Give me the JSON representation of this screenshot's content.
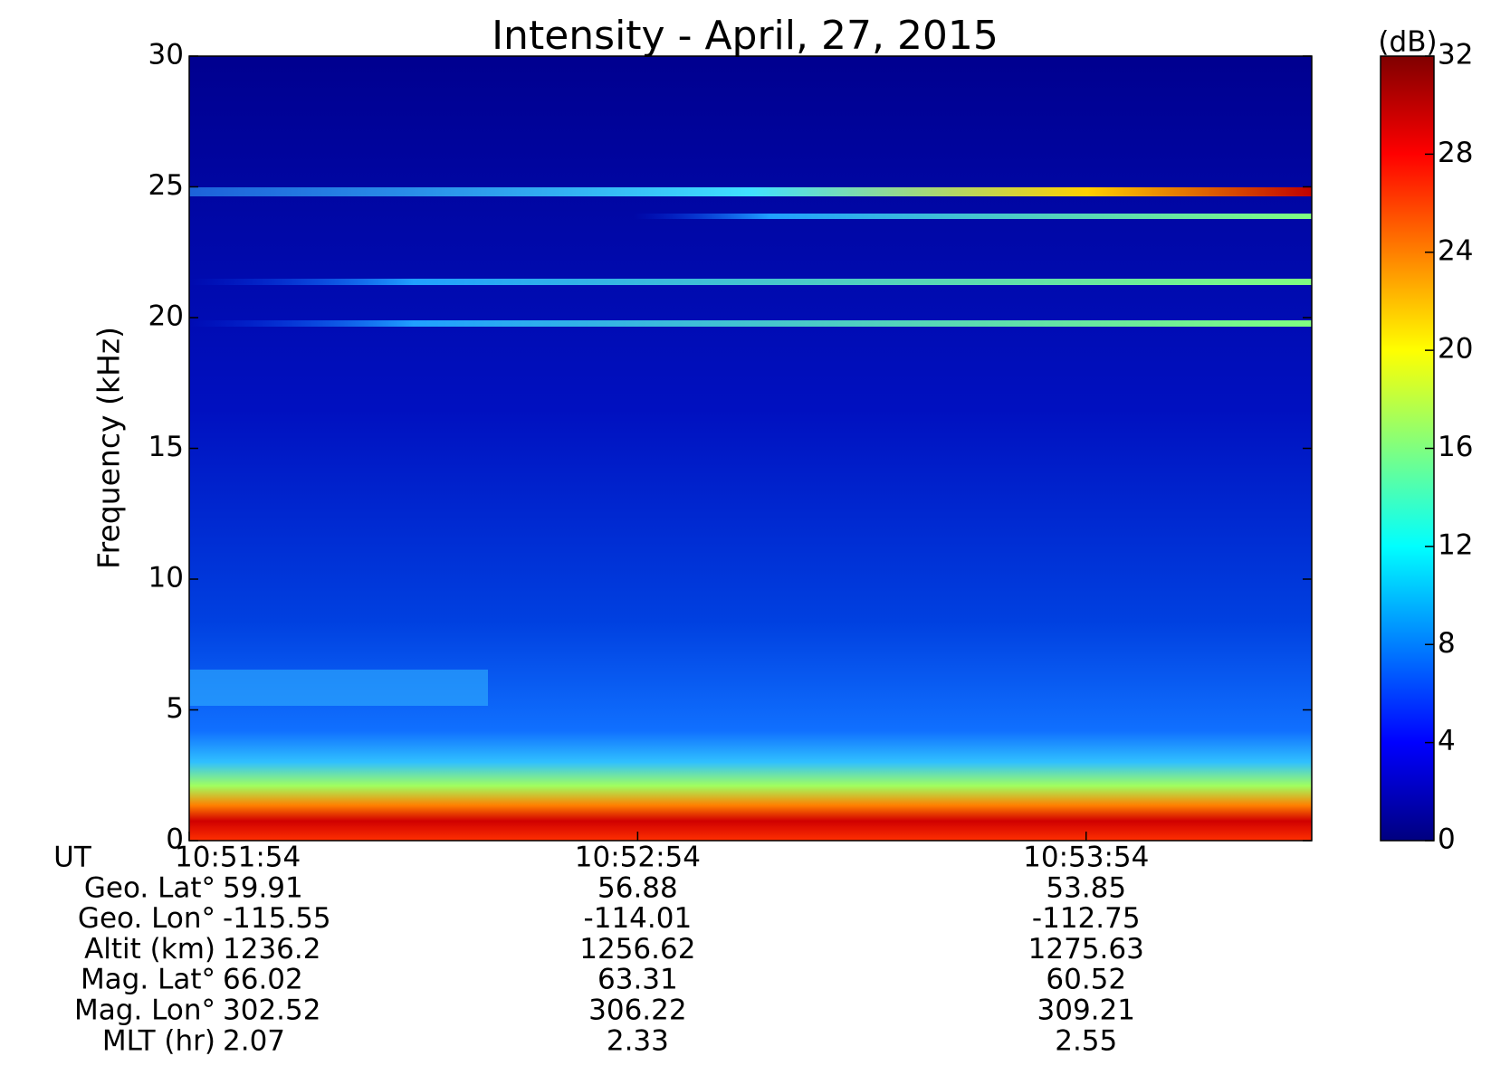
{
  "chart_data": {
    "type": "spectrogram",
    "title": "Intensity - April, 27, 2015",
    "y_label": "Frequency (kHz)",
    "ylim": [
      0,
      30
    ],
    "yticks": [
      0,
      5,
      10,
      15,
      20,
      25,
      30
    ],
    "colorbar": {
      "label": "(dB)",
      "clim": [
        0,
        32
      ],
      "ticks": [
        0,
        4,
        8,
        12,
        16,
        20,
        24,
        28,
        32
      ],
      "colormap": "jet"
    },
    "ephemeris": {
      "time_label": "UT",
      "times": [
        "10:51:54",
        "10:52:54",
        "10:53:54"
      ],
      "rows": [
        {
          "label": "Geo. Lat°",
          "values": [
            59.91,
            56.88,
            53.85
          ]
        },
        {
          "label": "Geo. Lon°",
          "values": [
            -115.55,
            -114.01,
            -112.75
          ]
        },
        {
          "label": "Altit (km)",
          "values": [
            1236.2,
            1256.62,
            1275.63
          ]
        },
        {
          "label": "Mag. Lat°",
          "values": [
            66.02,
            63.31,
            60.52
          ]
        },
        {
          "label": "Mag. Lon°",
          "values": [
            302.52,
            306.22,
            309.21
          ]
        },
        {
          "label": "MLT (hr)",
          "values": [
            2.07,
            2.33,
            2.55
          ]
        }
      ]
    }
  }
}
